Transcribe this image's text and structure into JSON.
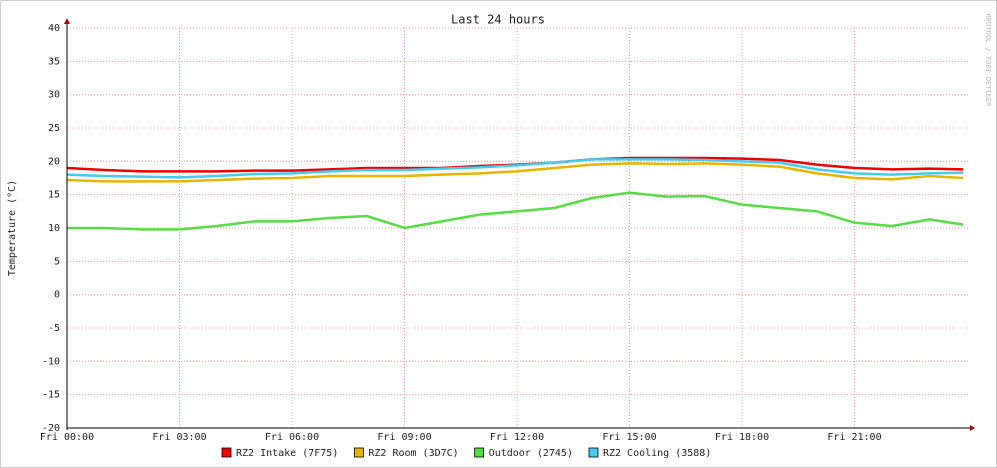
{
  "chart_data": {
    "type": "line",
    "title": "Last 24 hours",
    "y_label": "Temperature (°C)",
    "watermark": "RRDTOOL / TOBI OETIKER",
    "x": [
      0,
      1,
      2,
      3,
      4,
      5,
      6,
      7,
      8,
      9,
      10,
      11,
      12,
      13,
      14,
      15,
      16,
      17,
      18,
      19,
      20,
      21,
      22,
      23,
      23.9
    ],
    "xlim": [
      0,
      24
    ],
    "xticks": [
      {
        "value": 0,
        "label": "Fri 00:00"
      },
      {
        "value": 3,
        "label": "Fri 03:00"
      },
      {
        "value": 6,
        "label": "Fri 06:00"
      },
      {
        "value": 9,
        "label": "Fri 09:00"
      },
      {
        "value": 12,
        "label": "Fri 12:00"
      },
      {
        "value": 15,
        "label": "Fri 15:00"
      },
      {
        "value": 18,
        "label": "Fri 18:00"
      },
      {
        "value": 21,
        "label": "Fri 21:00"
      }
    ],
    "ylim": [
      -20,
      40
    ],
    "yticks": [
      -20,
      -15,
      -10,
      -5,
      0,
      5,
      10,
      15,
      20,
      25,
      30,
      35,
      40
    ],
    "grid": true,
    "series": [
      {
        "name": "RZ2 Intake (7F75)",
        "color": "#ee0000",
        "values": [
          19,
          18.7,
          18.5,
          18.5,
          18.5,
          18.6,
          18.6,
          18.8,
          19,
          19,
          19,
          19.3,
          19.5,
          19.8,
          20.3,
          20.5,
          20.5,
          20.5,
          20.4,
          20.2,
          19.5,
          19,
          18.8,
          18.9,
          18.8
        ]
      },
      {
        "name": "RZ2 Room (3D7C)",
        "color": "#e8b400",
        "values": [
          17.2,
          17,
          17,
          17,
          17.2,
          17.4,
          17.5,
          17.8,
          17.8,
          17.8,
          18,
          18.2,
          18.5,
          19,
          19.5,
          19.7,
          19.6,
          19.7,
          19.5,
          19.2,
          18.2,
          17.5,
          17.3,
          17.8,
          17.5
        ]
      },
      {
        "name": "Outdoor (2745)",
        "color": "#55dd44",
        "values": [
          10,
          10,
          9.8,
          9.8,
          10.3,
          11,
          11,
          11.5,
          11.8,
          10,
          11,
          12,
          12.5,
          13,
          14.5,
          15.3,
          14.7,
          14.8,
          13.5,
          13,
          12.5,
          10.8,
          10.3,
          11.3,
          10.5
        ]
      },
      {
        "name": "RZ2 Cooling (3588)",
        "color": "#44ccee",
        "values": [
          18,
          17.8,
          17.7,
          17.6,
          17.8,
          18.1,
          18.2,
          18.5,
          18.7,
          18.7,
          18.9,
          19.1,
          19.4,
          19.8,
          20.3,
          20.3,
          20.3,
          20.2,
          20,
          19.8,
          18.8,
          18.2,
          18,
          18.2,
          18.3
        ]
      }
    ]
  }
}
